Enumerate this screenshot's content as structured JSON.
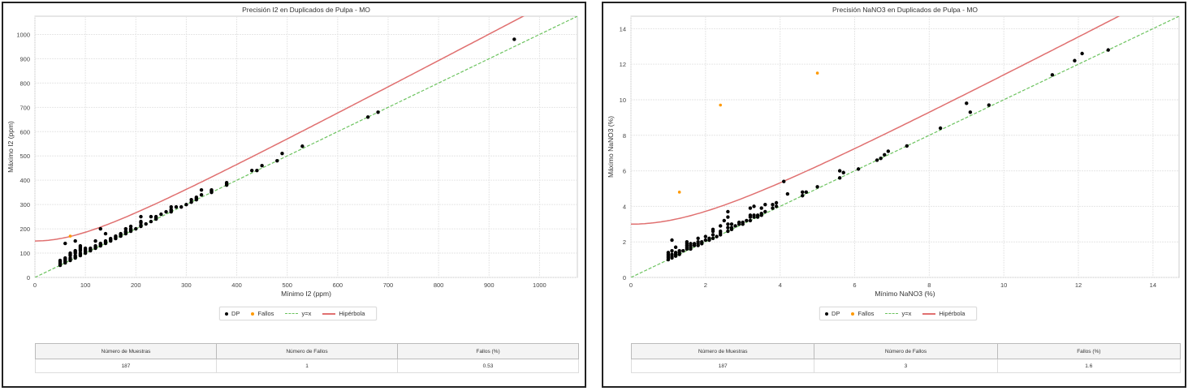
{
  "colors": {
    "dp": "#000000",
    "fallos": "#ff9900",
    "identity": "#6cc35f",
    "hyperbola": "#e07070",
    "grid": "#e6e6e6"
  },
  "chart_data": [
    {
      "type": "scatter",
      "title": "Precisión I2 en Duplicados de Pulpa - MO",
      "xlabel": "Mínimo I2 (ppm)",
      "ylabel": "Máximo I2 (ppm)",
      "xlim": [
        0,
        1075
      ],
      "ylim": [
        0,
        1075
      ],
      "xticks": [
        0,
        100,
        200,
        300,
        400,
        500,
        600,
        700,
        800,
        900,
        1000
      ],
      "yticks": [
        0,
        100,
        200,
        300,
        400,
        500,
        600,
        700,
        800,
        900,
        1000
      ],
      "grid": true,
      "legend_position": "bottom-center",
      "legend": [
        "DP",
        "Fallos",
        "y=x",
        "Hipérbola"
      ],
      "hyperbola": {
        "intercept": 150,
        "slope": 1.1
      },
      "series": [
        {
          "name": "DP",
          "points": [
            [
              50,
              50
            ],
            [
              50,
              55
            ],
            [
              50,
              60
            ],
            [
              50,
              65
            ],
            [
              50,
              70
            ],
            [
              60,
              60
            ],
            [
              60,
              65
            ],
            [
              60,
              70
            ],
            [
              60,
              75
            ],
            [
              60,
              80
            ],
            [
              60,
              140
            ],
            [
              70,
              70
            ],
            [
              70,
              75
            ],
            [
              70,
              80
            ],
            [
              70,
              90
            ],
            [
              70,
              95
            ],
            [
              70,
              100
            ],
            [
              80,
              80
            ],
            [
              80,
              85
            ],
            [
              80,
              90
            ],
            [
              80,
              100
            ],
            [
              80,
              105
            ],
            [
              80,
              110
            ],
            [
              80,
              150
            ],
            [
              90,
              90
            ],
            [
              90,
              95
            ],
            [
              90,
              100
            ],
            [
              90,
              110
            ],
            [
              90,
              115
            ],
            [
              90,
              120
            ],
            [
              90,
              125
            ],
            [
              90,
              130
            ],
            [
              100,
              100
            ],
            [
              100,
              105
            ],
            [
              100,
              110
            ],
            [
              100,
              115
            ],
            [
              100,
              120
            ],
            [
              110,
              110
            ],
            [
              110,
              115
            ],
            [
              110,
              120
            ],
            [
              120,
              120
            ],
            [
              120,
              125
            ],
            [
              120,
              130
            ],
            [
              120,
              150
            ],
            [
              130,
              130
            ],
            [
              130,
              135
            ],
            [
              130,
              140
            ],
            [
              130,
              200
            ],
            [
              140,
              140
            ],
            [
              140,
              145
            ],
            [
              140,
              150
            ],
            [
              140,
              180
            ],
            [
              150,
              150
            ],
            [
              150,
              155
            ],
            [
              150,
              160
            ],
            [
              160,
              160
            ],
            [
              160,
              165
            ],
            [
              160,
              170
            ],
            [
              170,
              170
            ],
            [
              170,
              175
            ],
            [
              170,
              180
            ],
            [
              180,
              180
            ],
            [
              180,
              185
            ],
            [
              180,
              190
            ],
            [
              180,
              200
            ],
            [
              190,
              190
            ],
            [
              190,
              195
            ],
            [
              190,
              200
            ],
            [
              190,
              210
            ],
            [
              200,
              200
            ],
            [
              210,
              210
            ],
            [
              210,
              215
            ],
            [
              210,
              225
            ],
            [
              210,
              230
            ],
            [
              210,
              250
            ],
            [
              220,
              220
            ],
            [
              230,
              230
            ],
            [
              230,
              250
            ],
            [
              240,
              240
            ],
            [
              240,
              245
            ],
            [
              240,
              250
            ],
            [
              250,
              260
            ],
            [
              260,
              270
            ],
            [
              270,
              270
            ],
            [
              270,
              275
            ],
            [
              270,
              280
            ],
            [
              270,
              290
            ],
            [
              280,
              290
            ],
            [
              290,
              290
            ],
            [
              300,
              300
            ],
            [
              310,
              310
            ],
            [
              310,
              320
            ],
            [
              320,
              320
            ],
            [
              320,
              325
            ],
            [
              320,
              330
            ],
            [
              330,
              340
            ],
            [
              330,
              360
            ],
            [
              350,
              350
            ],
            [
              350,
              355
            ],
            [
              350,
              360
            ],
            [
              380,
              380
            ],
            [
              380,
              385
            ],
            [
              380,
              390
            ],
            [
              430,
              440
            ],
            [
              440,
              440
            ],
            [
              450,
              460
            ],
            [
              480,
              480
            ],
            [
              490,
              510
            ],
            [
              530,
              540
            ],
            [
              660,
              660
            ],
            [
              680,
              680
            ],
            [
              950,
              980
            ]
          ]
        },
        {
          "name": "Fallos",
          "points": [
            [
              70,
              170
            ]
          ]
        }
      ]
    },
    {
      "type": "scatter",
      "title": "Precisión NaNO3 en Duplicados de Pulpa - MO",
      "xlabel": "Mínimo NaNO3 (%)",
      "ylabel": "Máximo NaNO3 (%)",
      "xlim": [
        0,
        14.7
      ],
      "ylim": [
        0,
        14.7
      ],
      "xticks": [
        0,
        2,
        4,
        6,
        8,
        10,
        12,
        14
      ],
      "yticks": [
        0,
        2,
        4,
        6,
        8,
        10,
        12,
        14
      ],
      "grid": true,
      "legend_position": "bottom-center",
      "legend": [
        "DP",
        "Fallos",
        "y=x",
        "Hipérbola"
      ],
      "hyperbola": {
        "intercept": 3,
        "slope": 1.1
      },
      "series": [
        {
          "name": "DP",
          "points": [
            [
              1.0,
              1.0
            ],
            [
              1.0,
              1.1
            ],
            [
              1.0,
              1.2
            ],
            [
              1.0,
              1.3
            ],
            [
              1.0,
              1.4
            ],
            [
              1.1,
              1.1
            ],
            [
              1.1,
              1.2
            ],
            [
              1.1,
              1.3
            ],
            [
              1.1,
              1.5
            ],
            [
              1.1,
              2.1
            ],
            [
              1.2,
              1.2
            ],
            [
              1.2,
              1.3
            ],
            [
              1.2,
              1.4
            ],
            [
              1.2,
              1.7
            ],
            [
              1.3,
              1.3
            ],
            [
              1.3,
              1.4
            ],
            [
              1.3,
              1.5
            ],
            [
              1.4,
              1.5
            ],
            [
              1.5,
              1.6
            ],
            [
              1.5,
              1.7
            ],
            [
              1.5,
              1.8
            ],
            [
              1.5,
              1.9
            ],
            [
              1.5,
              2.0
            ],
            [
              1.6,
              1.6
            ],
            [
              1.6,
              1.7
            ],
            [
              1.6,
              1.8
            ],
            [
              1.6,
              1.9
            ],
            [
              1.7,
              1.8
            ],
            [
              1.7,
              1.9
            ],
            [
              1.8,
              1.8
            ],
            [
              1.8,
              1.9
            ],
            [
              1.8,
              2.0
            ],
            [
              1.8,
              2.2
            ],
            [
              1.9,
              1.9
            ],
            [
              1.9,
              2.0
            ],
            [
              2.0,
              2.1
            ],
            [
              2.0,
              2.3
            ],
            [
              2.1,
              2.1
            ],
            [
              2.1,
              2.2
            ],
            [
              2.2,
              2.2
            ],
            [
              2.2,
              2.4
            ],
            [
              2.2,
              2.6
            ],
            [
              2.2,
              2.7
            ],
            [
              2.3,
              2.3
            ],
            [
              2.4,
              2.4
            ],
            [
              2.4,
              2.5
            ],
            [
              2.4,
              2.6
            ],
            [
              2.4,
              2.9
            ],
            [
              2.5,
              3.2
            ],
            [
              2.6,
              2.6
            ],
            [
              2.6,
              2.8
            ],
            [
              2.6,
              3.0
            ],
            [
              2.6,
              3.4
            ],
            [
              2.6,
              3.7
            ],
            [
              2.7,
              2.7
            ],
            [
              2.7,
              2.8
            ],
            [
              2.7,
              3.0
            ],
            [
              2.8,
              2.9
            ],
            [
              2.9,
              3.0
            ],
            [
              2.9,
              3.1
            ],
            [
              3.0,
              3.0
            ],
            [
              3.0,
              3.1
            ],
            [
              3.1,
              3.2
            ],
            [
              3.2,
              3.2
            ],
            [
              3.2,
              3.4
            ],
            [
              3.2,
              3.5
            ],
            [
              3.2,
              3.9
            ],
            [
              3.3,
              3.4
            ],
            [
              3.3,
              3.5
            ],
            [
              3.3,
              4.0
            ],
            [
              3.4,
              3.4
            ],
            [
              3.4,
              3.5
            ],
            [
              3.5,
              3.5
            ],
            [
              3.5,
              3.6
            ],
            [
              3.5,
              3.9
            ],
            [
              3.6,
              3.7
            ],
            [
              3.6,
              4.1
            ],
            [
              3.8,
              3.9
            ],
            [
              3.8,
              4.1
            ],
            [
              3.9,
              4.0
            ],
            [
              3.9,
              4.2
            ],
            [
              4.1,
              5.4
            ],
            [
              4.2,
              4.7
            ],
            [
              4.6,
              4.6
            ],
            [
              4.6,
              4.8
            ],
            [
              4.7,
              4.8
            ],
            [
              5.0,
              5.1
            ],
            [
              5.6,
              5.6
            ],
            [
              5.6,
              6.0
            ],
            [
              5.7,
              5.9
            ],
            [
              6.1,
              6.1
            ],
            [
              6.6,
              6.6
            ],
            [
              6.7,
              6.7
            ],
            [
              6.8,
              6.9
            ],
            [
              6.9,
              7.1
            ],
            [
              7.4,
              7.4
            ],
            [
              8.3,
              8.4
            ],
            [
              9.0,
              9.8
            ],
            [
              9.1,
              9.3
            ],
            [
              9.6,
              9.7
            ],
            [
              11.3,
              11.4
            ],
            [
              11.9,
              12.2
            ],
            [
              12.1,
              12.6
            ],
            [
              12.8,
              12.8
            ]
          ]
        },
        {
          "name": "Fallos",
          "points": [
            [
              1.3,
              4.8
            ],
            [
              2.4,
              9.7
            ],
            [
              5.0,
              11.5
            ]
          ]
        }
      ]
    }
  ],
  "panels": [
    {
      "legend": {
        "dp": "DP",
        "fallos": "Fallos",
        "identity": "y=x",
        "hyperbola": "Hipérbola"
      },
      "table": {
        "headers": [
          "Número de Muestras",
          "Número de Fallos",
          "Fallos (%)"
        ],
        "values": [
          "187",
          "1",
          "0.53"
        ]
      }
    },
    {
      "legend": {
        "dp": "DP",
        "fallos": "Fallos",
        "identity": "y=x",
        "hyperbola": "Hipérbola"
      },
      "table": {
        "headers": [
          "Número de Muestras",
          "Número de Fallos",
          "Fallos (%)"
        ],
        "values": [
          "187",
          "3",
          "1.6"
        ]
      }
    }
  ]
}
